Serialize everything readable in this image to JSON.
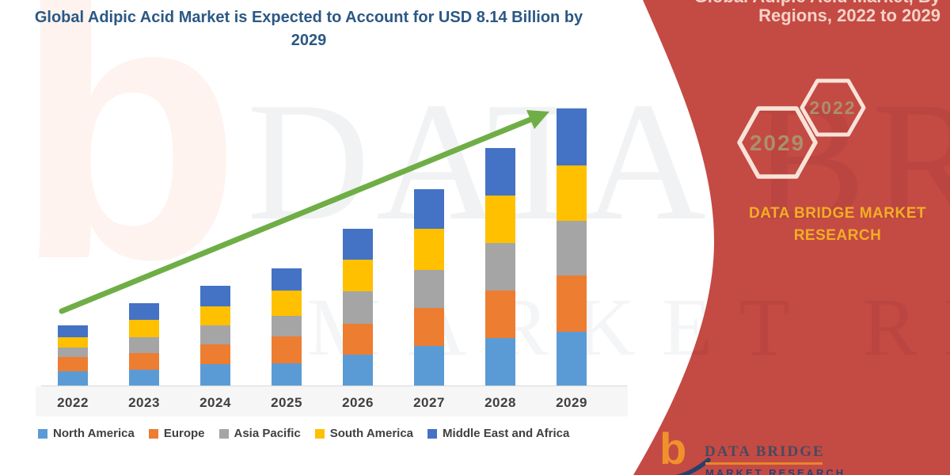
{
  "colors": {
    "panel_red": "#C44A44",
    "arrow_green": "#6FAE46",
    "title_blue": "#2B5884",
    "brand_yellow": "#F2AE24",
    "hexagon_outline": "#F7E3D8",
    "hexagon_text": "#AC8F6D",
    "axis_label_gray": "#3F3F3F"
  },
  "top_right": {
    "partial_line": "Global Adipic Acid Market, By",
    "line": "Regions, 2022 to 2029"
  },
  "side_panel": {
    "hexagons": [
      {
        "label": "2029"
      },
      {
        "label": "2022"
      }
    ],
    "brand_line1": "DATA BRIDGE MARKET",
    "brand_line2": "RESEARCH"
  },
  "logo": {
    "b": "b",
    "name": "DATA BRIDGE",
    "subname": "MARKET RESEARCH"
  },
  "watermarks": {
    "b": "b",
    "line1": "DATA BRIDGE",
    "line2": "MARKET RESEARCH"
  },
  "chart_data": {
    "type": "bar",
    "stacked": true,
    "title": "Global Adipic Acid Market is Expected to Account for USD 8.14 Billion by 2029",
    "unit": "USD Billion",
    "categories": [
      "2022",
      "2023",
      "2024",
      "2025",
      "2026",
      "2027",
      "2028",
      "2029"
    ],
    "series": [
      {
        "name": "North America",
        "color": "#5B9BD5",
        "values": [
          0.42,
          0.47,
          0.63,
          0.65,
          0.91,
          1.16,
          1.4,
          1.58
        ]
      },
      {
        "name": "Europe",
        "color": "#ED7D31",
        "values": [
          0.42,
          0.49,
          0.58,
          0.79,
          0.91,
          1.12,
          1.4,
          1.65
        ]
      },
      {
        "name": "Asia Pacific",
        "color": "#A5A5A5",
        "values": [
          0.28,
          0.47,
          0.56,
          0.6,
          0.95,
          1.12,
          1.4,
          1.6
        ]
      },
      {
        "name": "South America",
        "color": "#FFC000",
        "values": [
          0.3,
          0.51,
          0.56,
          0.74,
          0.93,
          1.21,
          1.4,
          1.63
        ]
      },
      {
        "name": "Middle East and Africa",
        "color": "#4472C4",
        "values": [
          0.35,
          0.49,
          0.6,
          0.65,
          0.91,
          1.16,
          1.4,
          1.68
        ]
      }
    ],
    "totals_estimated": [
      1.77,
      2.43,
      2.93,
      3.43,
      4.61,
      5.77,
      7.0,
      8.14
    ],
    "ylim": [
      0,
      8.5
    ],
    "grid": false,
    "y_axis_shown": false,
    "legend_position": "bottom",
    "annotations": [
      {
        "type": "trend-arrow",
        "color": "#6FAE46",
        "from_category": "2022",
        "to_category": "2029"
      }
    ]
  }
}
